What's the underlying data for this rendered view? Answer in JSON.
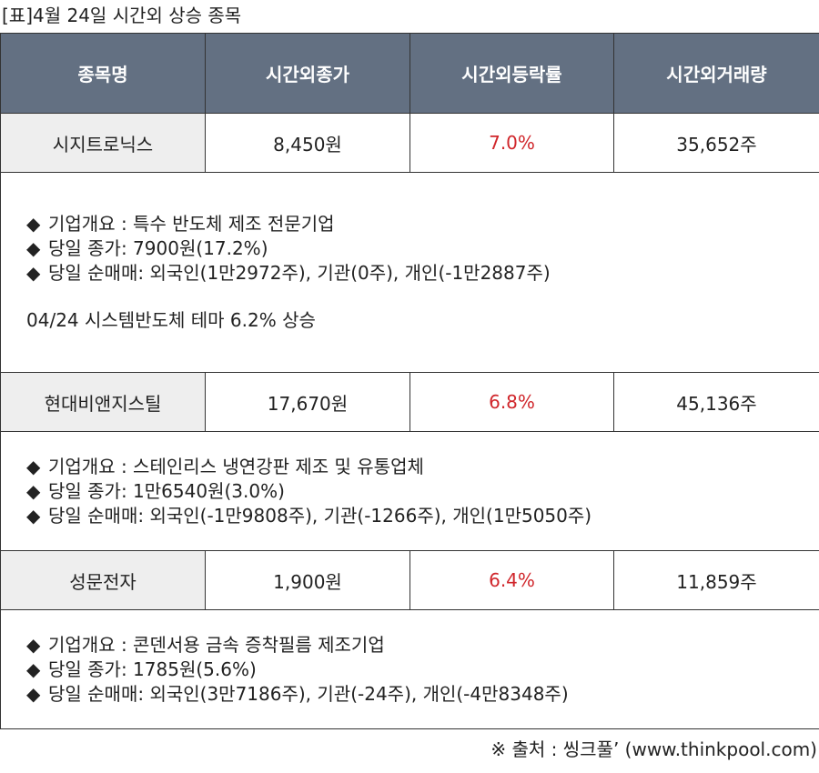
{
  "caption": "[표]4월 24일 시간외 상승 종목",
  "headers": [
    "종목명",
    "시간외종가",
    "시간외등락률",
    "시간외거래량"
  ],
  "bullet_icon": "◆",
  "stocks": [
    {
      "name": "시지트로닉스",
      "close": "8,450원",
      "rate": "7.0%",
      "volume": "35,652주",
      "details": [
        "기업개요 : 특수 반도체 제조 전문기업",
        "당일 종가: 7900원(17.2%)",
        "당일 순매매: 외국인(1만2972주), 기관(0주), 개인(-1만2887주)"
      ],
      "theme": "04/24 시스템반도체 테마 6.2% 상승"
    },
    {
      "name": "현대비앤지스틸",
      "close": "17,670원",
      "rate": "6.8%",
      "volume": "45,136주",
      "details": [
        "기업개요 : 스테인리스 냉연강판 제조 및 유통업체",
        "당일 종가: 1만6540원(3.0%)",
        "당일 순매매: 외국인(-1만9808주), 기관(-1266주), 개인(1만5050주)"
      ]
    },
    {
      "name": "성문전자",
      "close": "1,900원",
      "rate": "6.4%",
      "volume": "11,859주",
      "details": [
        "기업개요 : 콘덴서용 금속 증착필름 제조기업",
        "당일 종가: 1785원(5.6%)",
        "당일 순매매: 외국인(3만7186주), 기관(-24주), 개인(-4만8348주)"
      ]
    }
  ],
  "source": "※ 출처 : 씽크풀’ (www.thinkpool.com)",
  "colors": {
    "header_bg": "#637082",
    "rate_text": "#d0262b",
    "first_cell_bg": "#eeeeee"
  }
}
